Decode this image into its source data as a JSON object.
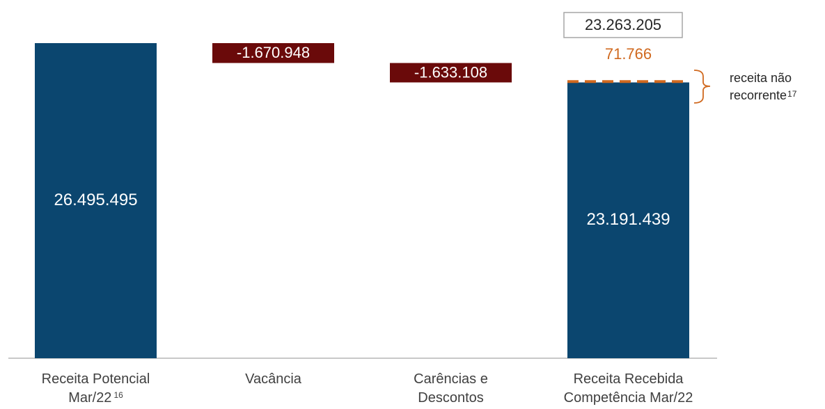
{
  "chart_data": {
    "type": "waterfall",
    "categories": [
      "Receita Potencial Mar/22",
      "Vacância",
      "Carências e Descontos",
      "Receita Recebida Competência Mar/22"
    ],
    "category_notes": [
      "16",
      null,
      null,
      null
    ],
    "values": [
      26495495,
      -1670948,
      -1633108,
      23191439
    ],
    "value_labels": [
      "26.495.495",
      "-1.670.948",
      "-1.633.108",
      "23.191.439"
    ],
    "totals": [
      true,
      false,
      false,
      true
    ],
    "colors": {
      "total": "#0b466f",
      "decrease": "#6a0a0a"
    },
    "non_recurring": {
      "value": 71766,
      "value_label": "71.766",
      "color": "#d0691f",
      "label": "receita não recorrente",
      "note": "17"
    },
    "total_label": {
      "value": 23263205,
      "label": "23.263.205"
    }
  }
}
